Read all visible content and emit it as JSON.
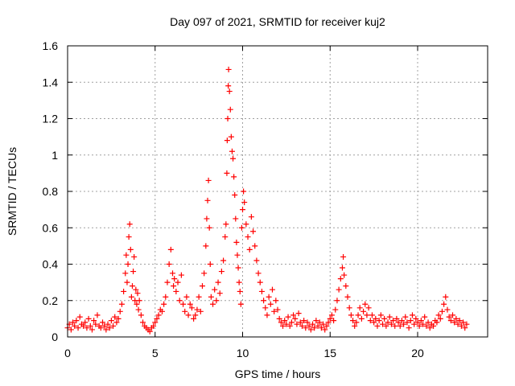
{
  "chart_data": {
    "type": "scatter",
    "title": "Day 097 of 2021, SRMTID for receiver kuj2",
    "xlabel": "GPS time / hours",
    "ylabel": "SRMTID / TECUs",
    "xlim": [
      0,
      24
    ],
    "ylim": [
      0,
      1.6
    ],
    "xticks": [
      0,
      5,
      10,
      15,
      20
    ],
    "xtick_labels": [
      "0",
      "5",
      "10",
      "15",
      "20"
    ],
    "yticks": [
      0,
      0.2,
      0.4,
      0.6,
      0.8,
      1.0,
      1.2,
      1.4,
      1.6
    ],
    "ytick_labels": [
      "0",
      "0.2",
      "0.4",
      "0.6",
      "0.8",
      "1",
      "1.2",
      "1.4",
      "1.6"
    ],
    "grid": true,
    "marker": "plus",
    "color": "#ff0000",
    "series": [
      {
        "name": "SRMTID",
        "points": [
          [
            0.0,
            0.05
          ],
          [
            0.1,
            0.07
          ],
          [
            0.2,
            0.04
          ],
          [
            0.3,
            0.08
          ],
          [
            0.4,
            0.06
          ],
          [
            0.5,
            0.09
          ],
          [
            0.6,
            0.05
          ],
          [
            0.7,
            0.11
          ],
          [
            0.8,
            0.07
          ],
          [
            0.9,
            0.06
          ],
          [
            1.0,
            0.08
          ],
          [
            1.1,
            0.05
          ],
          [
            1.2,
            0.1
          ],
          [
            1.3,
            0.06
          ],
          [
            1.4,
            0.04
          ],
          [
            1.5,
            0.09
          ],
          [
            1.6,
            0.07
          ],
          [
            1.7,
            0.12
          ],
          [
            1.8,
            0.06
          ],
          [
            1.9,
            0.05
          ],
          [
            2.0,
            0.08
          ],
          [
            2.1,
            0.06
          ],
          [
            2.2,
            0.04
          ],
          [
            2.3,
            0.07
          ],
          [
            2.4,
            0.05
          ],
          [
            2.5,
            0.09
          ],
          [
            2.6,
            0.06
          ],
          [
            2.7,
            0.11
          ],
          [
            2.8,
            0.08
          ],
          [
            2.9,
            0.1
          ],
          [
            3.0,
            0.14
          ],
          [
            3.1,
            0.18
          ],
          [
            3.2,
            0.25
          ],
          [
            3.3,
            0.35
          ],
          [
            3.35,
            0.45
          ],
          [
            3.4,
            0.3
          ],
          [
            3.45,
            0.4
          ],
          [
            3.5,
            0.55
          ],
          [
            3.55,
            0.62
          ],
          [
            3.6,
            0.48
          ],
          [
            3.65,
            0.22
          ],
          [
            3.7,
            0.28
          ],
          [
            3.75,
            0.36
          ],
          [
            3.8,
            0.44
          ],
          [
            3.85,
            0.2
          ],
          [
            3.9,
            0.26
          ],
          [
            3.95,
            0.18
          ],
          [
            4.0,
            0.24
          ],
          [
            4.05,
            0.15
          ],
          [
            4.1,
            0.2
          ],
          [
            4.2,
            0.12
          ],
          [
            4.3,
            0.08
          ],
          [
            4.4,
            0.06
          ],
          [
            4.5,
            0.05
          ],
          [
            4.6,
            0.04
          ],
          [
            4.7,
            0.03
          ],
          [
            4.8,
            0.05
          ],
          [
            4.9,
            0.06
          ],
          [
            5.0,
            0.08
          ],
          [
            5.1,
            0.1
          ],
          [
            5.2,
            0.12
          ],
          [
            5.3,
            0.15
          ],
          [
            5.4,
            0.14
          ],
          [
            5.5,
            0.18
          ],
          [
            5.6,
            0.22
          ],
          [
            5.7,
            0.3
          ],
          [
            5.8,
            0.4
          ],
          [
            5.9,
            0.48
          ],
          [
            6.0,
            0.35
          ],
          [
            6.05,
            0.28
          ],
          [
            6.1,
            0.32
          ],
          [
            6.2,
            0.25
          ],
          [
            6.3,
            0.3
          ],
          [
            6.4,
            0.2
          ],
          [
            6.5,
            0.34
          ],
          [
            6.6,
            0.18
          ],
          [
            6.7,
            0.14
          ],
          [
            6.8,
            0.22
          ],
          [
            6.9,
            0.12
          ],
          [
            7.0,
            0.18
          ],
          [
            7.1,
            0.16
          ],
          [
            7.2,
            0.1
          ],
          [
            7.3,
            0.12
          ],
          [
            7.4,
            0.15
          ],
          [
            7.5,
            0.22
          ],
          [
            7.6,
            0.14
          ],
          [
            7.7,
            0.28
          ],
          [
            7.8,
            0.35
          ],
          [
            7.9,
            0.5
          ],
          [
            7.95,
            0.65
          ],
          [
            8.0,
            0.75
          ],
          [
            8.05,
            0.86
          ],
          [
            8.1,
            0.6
          ],
          [
            8.15,
            0.4
          ],
          [
            8.2,
            0.22
          ],
          [
            8.3,
            0.18
          ],
          [
            8.4,
            0.26
          ],
          [
            8.5,
            0.2
          ],
          [
            8.6,
            0.3
          ],
          [
            8.7,
            0.24
          ],
          [
            8.8,
            0.36
          ],
          [
            8.9,
            0.42
          ],
          [
            9.0,
            0.55
          ],
          [
            9.05,
            0.62
          ],
          [
            9.1,
            0.9
          ],
          [
            9.12,
            1.08
          ],
          [
            9.15,
            1.2
          ],
          [
            9.18,
            1.38
          ],
          [
            9.2,
            1.47
          ],
          [
            9.25,
            1.35
          ],
          [
            9.3,
            1.25
          ],
          [
            9.35,
            1.1
          ],
          [
            9.4,
            1.02
          ],
          [
            9.45,
            0.98
          ],
          [
            9.5,
            0.88
          ],
          [
            9.55,
            0.78
          ],
          [
            9.6,
            0.65
          ],
          [
            9.65,
            0.52
          ],
          [
            9.7,
            0.45
          ],
          [
            9.75,
            0.38
          ],
          [
            9.8,
            0.3
          ],
          [
            9.85,
            0.25
          ],
          [
            9.9,
            0.18
          ],
          [
            9.95,
            0.6
          ],
          [
            10.0,
            0.7
          ],
          [
            10.05,
            0.8
          ],
          [
            10.1,
            0.74
          ],
          [
            10.2,
            0.62
          ],
          [
            10.3,
            0.55
          ],
          [
            10.4,
            0.48
          ],
          [
            10.5,
            0.66
          ],
          [
            10.6,
            0.58
          ],
          [
            10.7,
            0.5
          ],
          [
            10.8,
            0.42
          ],
          [
            10.9,
            0.35
          ],
          [
            11.0,
            0.3
          ],
          [
            11.1,
            0.25
          ],
          [
            11.2,
            0.2
          ],
          [
            11.3,
            0.16
          ],
          [
            11.4,
            0.12
          ],
          [
            11.5,
            0.22
          ],
          [
            11.6,
            0.18
          ],
          [
            11.7,
            0.26
          ],
          [
            11.8,
            0.14
          ],
          [
            11.9,
            0.2
          ],
          [
            12.0,
            0.15
          ],
          [
            12.1,
            0.1
          ],
          [
            12.2,
            0.08
          ],
          [
            12.3,
            0.06
          ],
          [
            12.4,
            0.09
          ],
          [
            12.5,
            0.07
          ],
          [
            12.6,
            0.11
          ],
          [
            12.7,
            0.06
          ],
          [
            12.8,
            0.08
          ],
          [
            12.9,
            0.12
          ],
          [
            13.0,
            0.1
          ],
          [
            13.1,
            0.07
          ],
          [
            13.2,
            0.13
          ],
          [
            13.3,
            0.08
          ],
          [
            13.4,
            0.06
          ],
          [
            13.5,
            0.09
          ],
          [
            13.6,
            0.05
          ],
          [
            13.7,
            0.08
          ],
          [
            13.8,
            0.06
          ],
          [
            13.9,
            0.04
          ],
          [
            14.0,
            0.07
          ],
          [
            14.1,
            0.05
          ],
          [
            14.2,
            0.09
          ],
          [
            14.3,
            0.06
          ],
          [
            14.4,
            0.08
          ],
          [
            14.5,
            0.05
          ],
          [
            14.6,
            0.07
          ],
          [
            14.7,
            0.04
          ],
          [
            14.8,
            0.06
          ],
          [
            14.9,
            0.08
          ],
          [
            15.0,
            0.1
          ],
          [
            15.1,
            0.12
          ],
          [
            15.2,
            0.09
          ],
          [
            15.3,
            0.15
          ],
          [
            15.4,
            0.2
          ],
          [
            15.5,
            0.26
          ],
          [
            15.6,
            0.32
          ],
          [
            15.7,
            0.38
          ],
          [
            15.75,
            0.44
          ],
          [
            15.8,
            0.34
          ],
          [
            15.9,
            0.28
          ],
          [
            16.0,
            0.22
          ],
          [
            16.1,
            0.16
          ],
          [
            16.2,
            0.12
          ],
          [
            16.3,
            0.09
          ],
          [
            16.4,
            0.06
          ],
          [
            16.5,
            0.08
          ],
          [
            16.6,
            0.12
          ],
          [
            16.7,
            0.16
          ],
          [
            16.8,
            0.1
          ],
          [
            16.9,
            0.14
          ],
          [
            17.0,
            0.18
          ],
          [
            17.1,
            0.12
          ],
          [
            17.2,
            0.16
          ],
          [
            17.3,
            0.09
          ],
          [
            17.4,
            0.12
          ],
          [
            17.5,
            0.08
          ],
          [
            17.6,
            0.1
          ],
          [
            17.7,
            0.06
          ],
          [
            17.8,
            0.09
          ],
          [
            17.9,
            0.12
          ],
          [
            18.0,
            0.07
          ],
          [
            18.1,
            0.1
          ],
          [
            18.2,
            0.06
          ],
          [
            18.3,
            0.08
          ],
          [
            18.4,
            0.11
          ],
          [
            18.5,
            0.07
          ],
          [
            18.6,
            0.09
          ],
          [
            18.7,
            0.06
          ],
          [
            18.8,
            0.1
          ],
          [
            18.9,
            0.08
          ],
          [
            19.0,
            0.06
          ],
          [
            19.1,
            0.09
          ],
          [
            19.2,
            0.07
          ],
          [
            19.3,
            0.11
          ],
          [
            19.4,
            0.08
          ],
          [
            19.5,
            0.05
          ],
          [
            19.6,
            0.09
          ],
          [
            19.7,
            0.12
          ],
          [
            19.8,
            0.07
          ],
          [
            19.9,
            0.1
          ],
          [
            20.0,
            0.08
          ],
          [
            20.1,
            0.06
          ],
          [
            20.2,
            0.09
          ],
          [
            20.3,
            0.07
          ],
          [
            20.4,
            0.11
          ],
          [
            20.5,
            0.06
          ],
          [
            20.6,
            0.08
          ],
          [
            20.7,
            0.05
          ],
          [
            20.8,
            0.07
          ],
          [
            20.9,
            0.06
          ],
          [
            21.0,
            0.09
          ],
          [
            21.1,
            0.08
          ],
          [
            21.2,
            0.12
          ],
          [
            21.3,
            0.1
          ],
          [
            21.4,
            0.14
          ],
          [
            21.5,
            0.18
          ],
          [
            21.6,
            0.22
          ],
          [
            21.7,
            0.15
          ],
          [
            21.8,
            0.11
          ],
          [
            21.9,
            0.09
          ],
          [
            22.0,
            0.12
          ],
          [
            22.1,
            0.08
          ],
          [
            22.2,
            0.1
          ],
          [
            22.3,
            0.07
          ],
          [
            22.4,
            0.09
          ],
          [
            22.5,
            0.06
          ],
          [
            22.6,
            0.08
          ],
          [
            22.7,
            0.05
          ],
          [
            22.8,
            0.07
          ]
        ]
      }
    ]
  }
}
